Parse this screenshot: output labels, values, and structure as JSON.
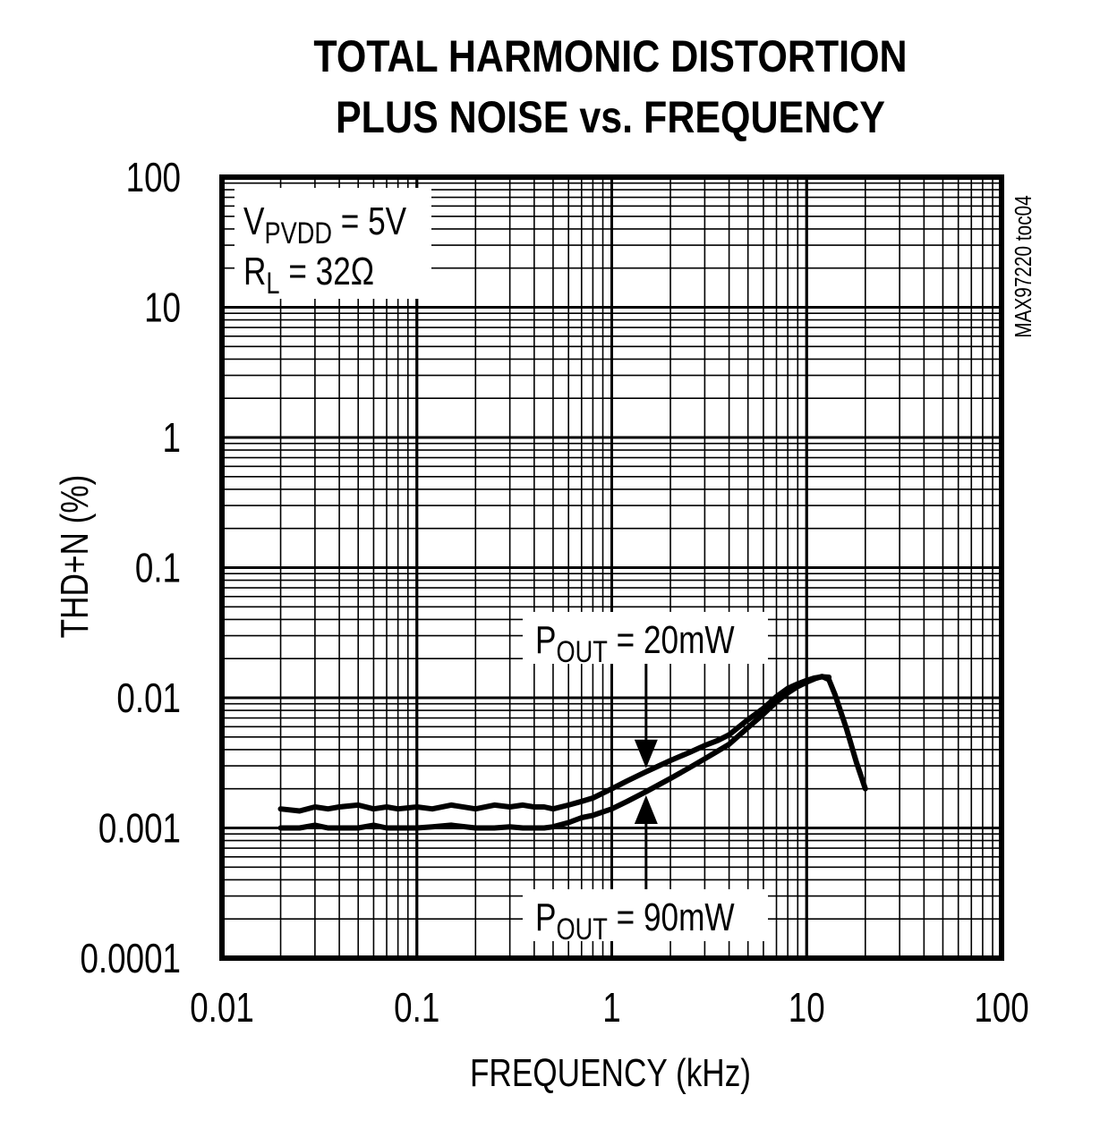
{
  "chart_data": {
    "type": "line",
    "title_lines": [
      "TOTAL HARMONIC DISTORTION",
      "PLUS NOISE vs. FREQUENCY"
    ],
    "xlabel": "FREQUENCY (kHz)",
    "ylabel": "THD+N (%)",
    "x_scale": "log",
    "y_scale": "log",
    "xlim": [
      0.01,
      100
    ],
    "ylim": [
      0.0001,
      100
    ],
    "x_ticks": [
      {
        "value": 0.01,
        "label": "0.01"
      },
      {
        "value": 0.1,
        "label": "0.1"
      },
      {
        "value": 1,
        "label": "1"
      },
      {
        "value": 10,
        "label": "10"
      },
      {
        "value": 100,
        "label": "100"
      }
    ],
    "y_ticks": [
      {
        "value": 100,
        "label": "100"
      },
      {
        "value": 10,
        "label": "10"
      },
      {
        "value": 1,
        "label": "1"
      },
      {
        "value": 0.1,
        "label": "0.1"
      },
      {
        "value": 0.01,
        "label": "0.01"
      },
      {
        "value": 0.001,
        "label": "0.001"
      },
      {
        "value": 0.0001,
        "label": "0.0001"
      }
    ],
    "grid": true,
    "conditions": {
      "supply_main": "V",
      "supply_sub": "PVDD",
      "supply_value": " = 5V",
      "load_main": "R",
      "load_sub": "L",
      "load_value": " = 32Ω"
    },
    "figure_id": "MAX97220 toc04",
    "series": [
      {
        "name": "POUT = 20mW",
        "label_main": "P",
        "label_sub": "OUT",
        "label_value": " = 20mW",
        "x": [
          0.02,
          0.025,
          0.03,
          0.035,
          0.04,
          0.05,
          0.06,
          0.07,
          0.08,
          0.1,
          0.12,
          0.15,
          0.2,
          0.25,
          0.3,
          0.35,
          0.4,
          0.45,
          0.5,
          0.6,
          0.7,
          0.8,
          1.0,
          1.2,
          1.5,
          2.0,
          2.5,
          3.0,
          3.5,
          4.0,
          5.0,
          6.0,
          7.0,
          8.0,
          9.0,
          10.0,
          11.0,
          12.0,
          13.0
        ],
        "y": [
          0.0014,
          0.00135,
          0.00145,
          0.0014,
          0.00145,
          0.0015,
          0.0014,
          0.00145,
          0.0014,
          0.00145,
          0.0014,
          0.0015,
          0.0014,
          0.0015,
          0.00145,
          0.0015,
          0.00145,
          0.00145,
          0.0014,
          0.0015,
          0.0016,
          0.0017,
          0.002,
          0.0023,
          0.0027,
          0.0033,
          0.0038,
          0.0043,
          0.0047,
          0.0052,
          0.0068,
          0.0083,
          0.0102,
          0.0118,
          0.0128,
          0.0136,
          0.0142,
          0.0145,
          0.0144
        ]
      },
      {
        "name": "POUT = 90mW",
        "label_main": "P",
        "label_sub": "OUT",
        "label_value": " = 90mW",
        "x": [
          0.02,
          0.025,
          0.03,
          0.035,
          0.04,
          0.05,
          0.06,
          0.07,
          0.08,
          0.1,
          0.12,
          0.15,
          0.2,
          0.25,
          0.3,
          0.35,
          0.4,
          0.45,
          0.5,
          0.6,
          0.7,
          0.8,
          1.0,
          1.2,
          1.5,
          2.0,
          2.5,
          3.0,
          3.5,
          4.0,
          5.0,
          6.0,
          7.0,
          8.0,
          9.0,
          10.0,
          11.0,
          12.0,
          13.0,
          14.0,
          16.0,
          18.0,
          20.0
        ],
        "y": [
          0.001,
          0.001,
          0.00105,
          0.001,
          0.001,
          0.001,
          0.00105,
          0.001,
          0.001,
          0.001,
          0.00102,
          0.00105,
          0.001,
          0.001,
          0.00102,
          0.001,
          0.001,
          0.001,
          0.00102,
          0.0011,
          0.0012,
          0.00125,
          0.0014,
          0.0016,
          0.0019,
          0.0024,
          0.0029,
          0.0034,
          0.0039,
          0.0044,
          0.0059,
          0.0075,
          0.0093,
          0.0109,
          0.0122,
          0.0132,
          0.014,
          0.0146,
          0.0138,
          0.0105,
          0.0058,
          0.0032,
          0.002
        ]
      }
    ]
  }
}
